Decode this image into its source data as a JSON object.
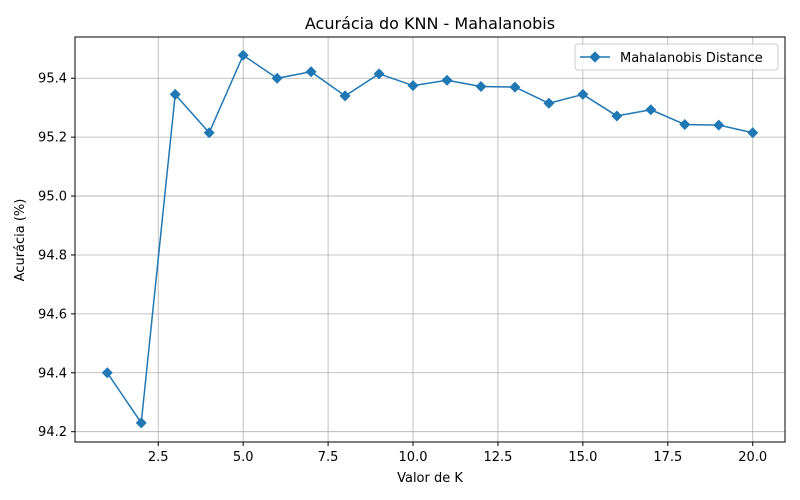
{
  "chart_data": {
    "type": "line",
    "title": "Acurácia do KNN - Mahalanobis",
    "xlabel": "Valor de K",
    "ylabel": "Acurácia (%)",
    "xlim": [
      0.05,
      20.95
    ],
    "ylim": [
      94.165,
      95.54
    ],
    "xticks": [
      2.5,
      5.0,
      7.5,
      10.0,
      12.5,
      15.0,
      17.5,
      20.0
    ],
    "xtick_labels": [
      "2.5",
      "5.0",
      "7.5",
      "10.0",
      "12.5",
      "15.0",
      "17.5",
      "20.0"
    ],
    "yticks": [
      94.2,
      94.4,
      94.6,
      94.8,
      95.0,
      95.2,
      95.4
    ],
    "ytick_labels": [
      "94.2",
      "94.4",
      "94.6",
      "94.8",
      "95.0",
      "95.2",
      "95.4"
    ],
    "grid": true,
    "legend_position": "upper-right",
    "marker": "diamond",
    "series": [
      {
        "name": "Mahalanobis Distance",
        "color": "#1f77b4",
        "x": [
          1,
          2,
          3,
          4,
          5,
          6,
          7,
          8,
          9,
          10,
          11,
          12,
          13,
          14,
          15,
          16,
          17,
          18,
          19,
          20
        ],
        "y": [
          94.4,
          94.23,
          95.345,
          95.215,
          95.478,
          95.4,
          95.422,
          95.34,
          95.415,
          95.375,
          95.393,
          95.372,
          95.37,
          95.315,
          95.345,
          95.272,
          95.293,
          95.243,
          95.241,
          95.215
        ]
      }
    ]
  }
}
